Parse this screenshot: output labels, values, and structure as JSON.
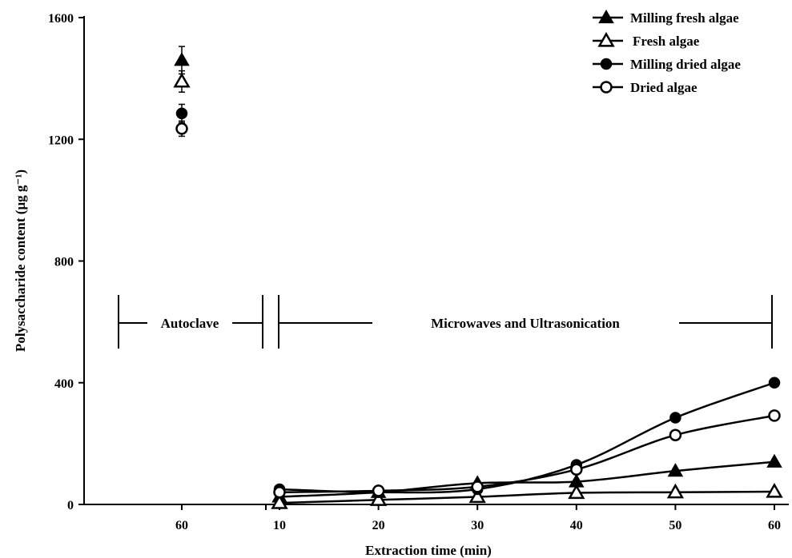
{
  "chart_data": {
    "type": "line",
    "xlabel": "Extraction time (min)",
    "ylabel": "Polysaccharide content (μg g⁻¹)",
    "ylim": [
      0,
      1600
    ],
    "yticks": [
      0,
      400,
      800,
      1200,
      1600
    ],
    "grid": false,
    "legend_position": "top-right",
    "regions": [
      {
        "label": "Autoclave",
        "x_ticks": [
          "60"
        ]
      },
      {
        "label": "Microwaves and Ultrasonication",
        "x_ticks": [
          "10",
          "20",
          "30",
          "40",
          "50",
          "60"
        ]
      }
    ],
    "autoclave": {
      "x": 60,
      "series": [
        {
          "name": "Milling fresh algae",
          "marker": "triangle-filled",
          "value": 1460,
          "error": 45
        },
        {
          "name": "Fresh algae",
          "marker": "triangle-open",
          "value": 1390,
          "error": 35
        },
        {
          "name": "Milling dried algae",
          "marker": "circle-filled",
          "value": 1285,
          "error": 30
        },
        {
          "name": "Dried algae",
          "marker": "circle-open",
          "value": 1235,
          "error": 25
        }
      ]
    },
    "microwave_ultrasonication": {
      "x": [
        10,
        20,
        30,
        40,
        50,
        60
      ],
      "series": [
        {
          "name": "Milling fresh algae",
          "marker": "triangle-filled",
          "values": [
            25,
            40,
            70,
            75,
            110,
            140
          ]
        },
        {
          "name": "Fresh algae",
          "marker": "triangle-open",
          "values": [
            5,
            15,
            25,
            38,
            40,
            42
          ]
        },
        {
          "name": "Milling dried algae",
          "marker": "circle-filled",
          "values": [
            50,
            40,
            50,
            130,
            285,
            400
          ]
        },
        {
          "name": "Dried algae",
          "marker": "circle-open",
          "values": [
            40,
            45,
            58,
            115,
            228,
            292
          ]
        }
      ]
    }
  }
}
